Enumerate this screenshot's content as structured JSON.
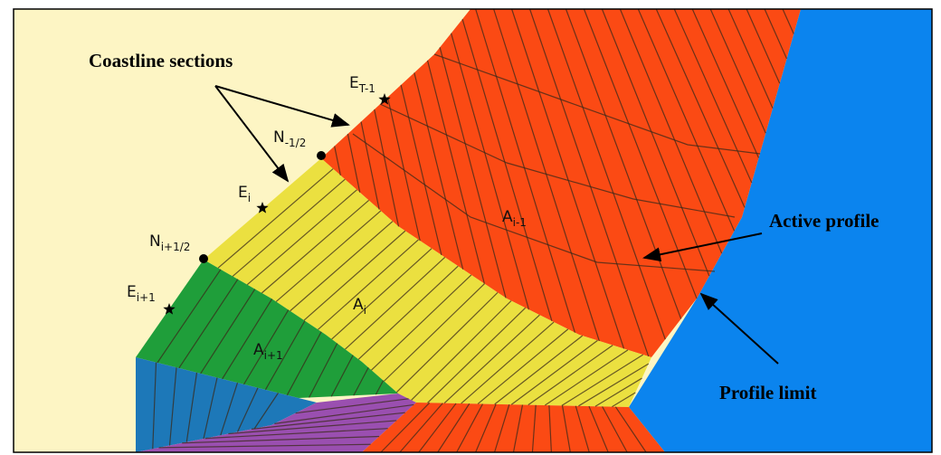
{
  "annotations": {
    "coastline_sections": "Coastline sections",
    "active_profile": "Active profile",
    "profile_limit": "Profile limit"
  },
  "points": [
    {
      "base": "E",
      "sub": "T-1"
    },
    {
      "base": "N",
      "sub": "-1/2"
    },
    {
      "base": "E",
      "sub": "i"
    },
    {
      "base": "N",
      "sub": "i+1/2"
    },
    {
      "base": "E",
      "sub": "i+1"
    }
  ],
  "areas": [
    {
      "base": "A",
      "sub": "i-1"
    },
    {
      "base": "A",
      "sub": "i"
    },
    {
      "base": "A",
      "sub": "i+1"
    }
  ]
}
